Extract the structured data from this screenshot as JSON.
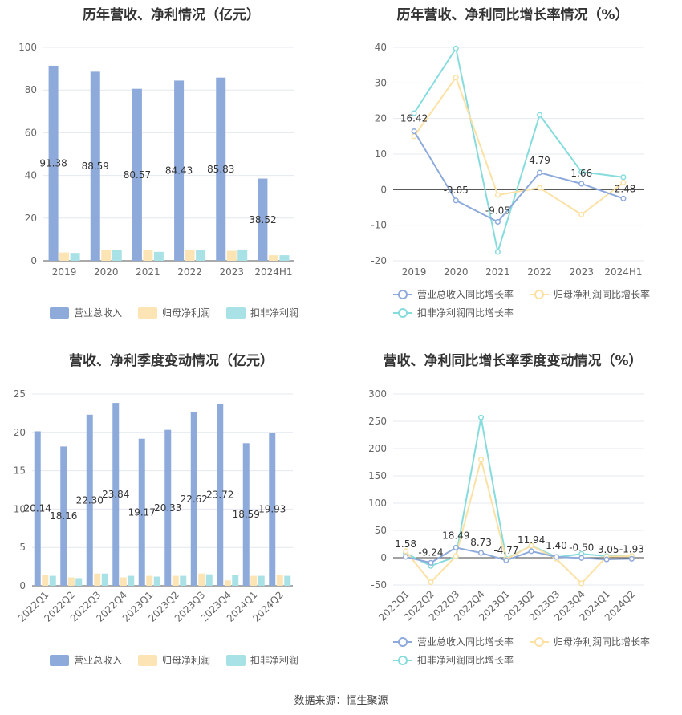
{
  "colors": {
    "revenue": "#8eaadb",
    "net_profit": "#fce4b4",
    "deducted": "#a9e2e6",
    "rev_growth": "#8eaadb",
    "np_growth": "#fce1a4",
    "ded_growth": "#86dcdd"
  },
  "footer": {
    "source": "数据来源：恒生聚源"
  },
  "chart_data": [
    {
      "id": "annual-amounts",
      "type": "bar",
      "title": "历年营收、净利情况（亿元）",
      "categories": [
        "2019",
        "2020",
        "2021",
        "2022",
        "2023",
        "2024H1"
      ],
      "ylim": [
        0,
        100
      ],
      "yticks": [
        0,
        20,
        40,
        60,
        80,
        100
      ],
      "grid": true,
      "legend_position": "bottom",
      "series": [
        {
          "name": "营业总收入",
          "values": [
            91.38,
            88.59,
            80.57,
            84.43,
            85.83,
            38.52
          ],
          "labels": [
            "91.38",
            "88.59",
            "80.57",
            "84.43",
            "85.83",
            "38.52"
          ]
        },
        {
          "name": "归母净利润",
          "values": [
            3.9,
            5.1,
            5.0,
            5.0,
            4.7,
            2.6
          ]
        },
        {
          "name": "扣非净利润",
          "values": [
            3.7,
            5.1,
            4.2,
            5.1,
            5.3,
            2.6
          ]
        }
      ]
    },
    {
      "id": "annual-growth",
      "type": "line",
      "title": "历年营收、净利同比增长率情况（%）",
      "categories": [
        "2019",
        "2020",
        "2021",
        "2022",
        "2023",
        "2024H1"
      ],
      "ylim": [
        -20,
        40
      ],
      "yticks": [
        -20,
        -10,
        0,
        10,
        20,
        30,
        40
      ],
      "grid": true,
      "legend_position": "bottom",
      "series": [
        {
          "name": "营业总收入同比增长率",
          "values": [
            16.42,
            -3.05,
            -9.05,
            4.79,
            1.66,
            -2.48
          ],
          "labels": [
            "16.42",
            "-3.05",
            "-9.05",
            "4.79",
            "1.66",
            "-2.48"
          ]
        },
        {
          "name": "归母净利润同比增长率",
          "values": [
            15.0,
            31.5,
            -1.5,
            0.5,
            -7.0,
            2.0
          ]
        },
        {
          "name": "扣非净利润同比增长率",
          "values": [
            21.5,
            39.7,
            -17.5,
            21.0,
            5.0,
            3.5
          ]
        }
      ]
    },
    {
      "id": "quarterly-amounts",
      "type": "bar",
      "title": "营收、净利季度变动情况（亿元）",
      "categories": [
        "2022Q1",
        "2022Q2",
        "2022Q3",
        "2022Q4",
        "2023Q1",
        "2023Q2",
        "2023Q3",
        "2023Q4",
        "2024Q1",
        "2024Q2"
      ],
      "ylim": [
        0,
        25
      ],
      "yticks": [
        0,
        5,
        10,
        15,
        20,
        25
      ],
      "grid": true,
      "legend_position": "bottom",
      "series": [
        {
          "name": "营业总收入",
          "values": [
            20.14,
            18.16,
            22.3,
            23.84,
            19.17,
            20.33,
            22.62,
            23.72,
            18.59,
            19.93
          ],
          "labels": [
            "20.14",
            "18.16",
            "22.30",
            "23.84",
            "19.17",
            "20.33",
            "22.62",
            "23.72",
            "18.59",
            "19.93"
          ]
        },
        {
          "name": "归母净利润",
          "values": [
            1.4,
            1.1,
            1.6,
            1.1,
            1.3,
            1.3,
            1.6,
            0.7,
            1.3,
            1.4
          ]
        },
        {
          "name": "扣非净利润",
          "values": [
            1.3,
            1.0,
            1.6,
            1.3,
            1.2,
            1.3,
            1.5,
            1.4,
            1.3,
            1.3
          ]
        }
      ]
    },
    {
      "id": "quarterly-growth",
      "type": "line",
      "title": "营收、净利同比增长率季度变动情况（%）",
      "categories": [
        "2022Q1",
        "2022Q2",
        "2022Q3",
        "2022Q4",
        "2023Q1",
        "2023Q2",
        "2023Q3",
        "2023Q4",
        "2024Q1",
        "2024Q2"
      ],
      "ylim": [
        -50,
        300
      ],
      "yticks": [
        -50,
        0,
        50,
        100,
        150,
        200,
        250,
        300
      ],
      "grid": true,
      "legend_position": "bottom",
      "series": [
        {
          "name": "营业总收入同比增长率",
          "values": [
            1.58,
            -9.24,
            18.49,
            8.73,
            -4.77,
            11.94,
            1.4,
            -0.5,
            -3.05,
            -1.93
          ],
          "labels": [
            "1.58",
            "-9.24",
            "18.49",
            "8.73",
            "-4.77",
            "11.94",
            "1.40",
            "-0.50",
            "-3.05",
            "-1.93"
          ]
        },
        {
          "name": "归母净利润同比增长率",
          "values": [
            12,
            -45,
            3,
            180,
            -3,
            22,
            -2,
            -47,
            2,
            3
          ]
        },
        {
          "name": "扣非净利润同比增长率",
          "values": [
            8,
            -15,
            2,
            257,
            -2,
            22,
            1,
            7,
            3,
            3
          ]
        }
      ]
    }
  ]
}
